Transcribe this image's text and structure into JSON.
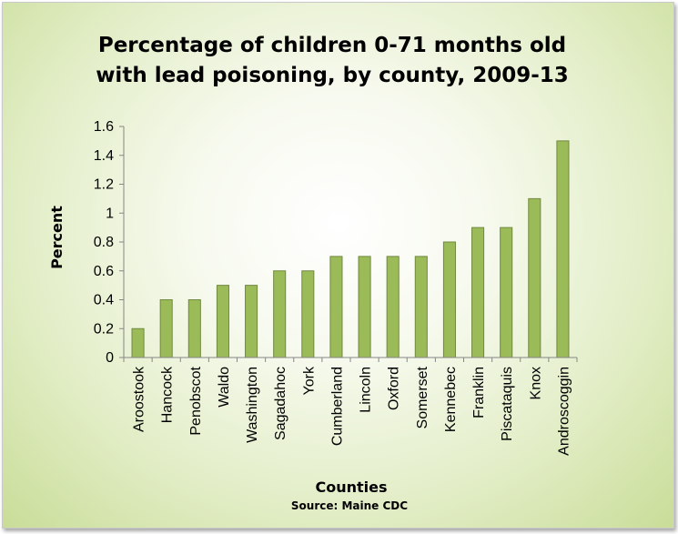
{
  "chart_data": {
    "type": "bar",
    "title_lines": [
      "Percentage of children 0-71 months old",
      "with lead poisoning, by county, 2009-13"
    ],
    "xlabel": "Counties",
    "ylabel": "Percent",
    "source": "Source: Maine CDC",
    "categories": [
      "Aroostook",
      "Hancock",
      "Penobscot",
      "Waldo",
      "Washington",
      "Sagadahoc",
      "York",
      "Cumberland",
      "Lincoln",
      "Oxford",
      "Somerset",
      "Kennebec",
      "Franklin",
      "Piscataquis",
      "Knox",
      "Androscoggin"
    ],
    "values": [
      0.2,
      0.4,
      0.4,
      0.5,
      0.5,
      0.6,
      0.6,
      0.7,
      0.7,
      0.7,
      0.7,
      0.8,
      0.9,
      0.9,
      1.1,
      1.5
    ],
    "ylim": [
      0,
      1.6
    ],
    "yticks": [
      "0",
      "0.2",
      "0.4",
      "0.6",
      "0.8",
      "1",
      "1.2",
      "1.4",
      "1.6"
    ],
    "grid": false,
    "legend": "none",
    "bar_color": "#9bbb59",
    "bar_border_color": "#71893f"
  }
}
